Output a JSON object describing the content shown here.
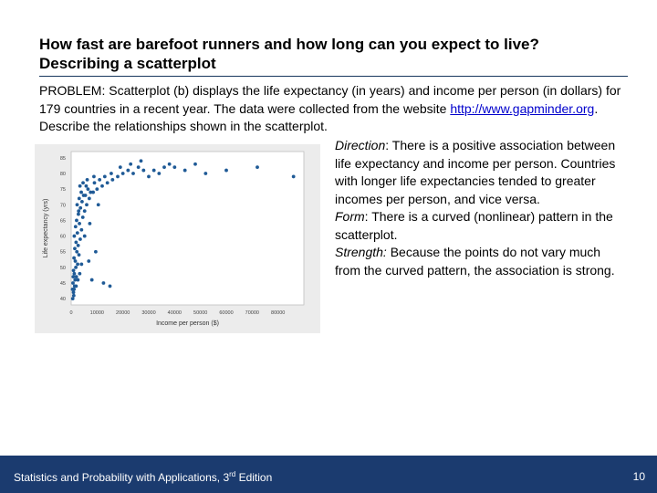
{
  "slide": {
    "title_line1": "How fast are barefoot runners and how long can you expect to live?",
    "title_line2": "Describing a scatterplot",
    "problem_label": "PROBLEM:",
    "problem_text_a": " Scatterplot (b) displays the life expectancy (in years) and income per person (in dollars) for 179 countries in a recent year. The data were collected from the website ",
    "problem_link": "http://www.gapminder.org",
    "problem_text_b": ". Describe the relationships shown in the scatterplot.",
    "direction_label": "Direction",
    "direction_text": ": There is a positive association between life expectancy and income per person.  Countries with longer life expectancies tended to greater incomes per person, and vice versa.",
    "form_label": "Form",
    "form_text": ": There is a curved (nonlinear) pattern in the scatterplot.",
    "strength_label": "Strength:",
    "strength_text": " Because the points do not vary much from the curved pattern, the association is strong."
  },
  "footer": {
    "book_pre": "Statistics and Probability with Applications, 3",
    "book_sup": "rd",
    "book_post": " Edition",
    "page_number": "10",
    "bar_color": "#1b3b6f"
  },
  "chart_data": {
    "type": "scatter",
    "xlabel": "Income per person ($)",
    "ylabel": "Life expectancy (yrs)",
    "xlim": [
      0,
      90000
    ],
    "ylim": [
      38,
      87
    ],
    "xticks": [
      "0",
      "10000",
      "20000",
      "30000",
      "40000",
      "50000",
      "60000",
      "70000",
      "80000"
    ],
    "yticks": [
      "40",
      "45",
      "50",
      "55",
      "60",
      "65",
      "70",
      "75",
      "80",
      "85"
    ],
    "point_color": "#1f5a96",
    "points": [
      [
        900,
        42
      ],
      [
        1100,
        43
      ],
      [
        1300,
        44
      ],
      [
        700,
        45
      ],
      [
        1500,
        46
      ],
      [
        2000,
        47
      ],
      [
        1200,
        48
      ],
      [
        900,
        49
      ],
      [
        1800,
        50
      ],
      [
        2500,
        51
      ],
      [
        1600,
        52
      ],
      [
        1100,
        53
      ],
      [
        3000,
        54
      ],
      [
        2200,
        55
      ],
      [
        1400,
        56
      ],
      [
        2700,
        57
      ],
      [
        1900,
        58
      ],
      [
        3500,
        59
      ],
      [
        1200,
        60
      ],
      [
        2400,
        61
      ],
      [
        4000,
        62
      ],
      [
        1700,
        63
      ],
      [
        3200,
        64
      ],
      [
        2100,
        65
      ],
      [
        4500,
        66
      ],
      [
        2800,
        67
      ],
      [
        5200,
        68
      ],
      [
        3600,
        69
      ],
      [
        2300,
        70
      ],
      [
        6000,
        70
      ],
      [
        4200,
        71
      ],
      [
        3100,
        72
      ],
      [
        7000,
        72
      ],
      [
        5500,
        73
      ],
      [
        4800,
        73
      ],
      [
        8500,
        74
      ],
      [
        3900,
        74
      ],
      [
        6500,
        75
      ],
      [
        10000,
        75
      ],
      [
        5800,
        76
      ],
      [
        12000,
        76
      ],
      [
        7500,
        74
      ],
      [
        9000,
        77
      ],
      [
        14000,
        77
      ],
      [
        11000,
        78
      ],
      [
        16000,
        78
      ],
      [
        13000,
        79
      ],
      [
        18000,
        79
      ],
      [
        20000,
        80
      ],
      [
        24000,
        80
      ],
      [
        28000,
        81
      ],
      [
        32000,
        81
      ],
      [
        36000,
        82
      ],
      [
        40000,
        82
      ],
      [
        44000,
        81
      ],
      [
        34000,
        80
      ],
      [
        38000,
        83
      ],
      [
        30000,
        79
      ],
      [
        26000,
        82
      ],
      [
        22000,
        81
      ],
      [
        48000,
        83
      ],
      [
        52000,
        80
      ],
      [
        60000,
        81
      ],
      [
        72000,
        82
      ],
      [
        86000,
        79
      ],
      [
        600,
        40
      ],
      [
        1000,
        41
      ],
      [
        1900,
        44
      ],
      [
        2600,
        46
      ],
      [
        3300,
        48
      ],
      [
        8000,
        46
      ],
      [
        12500,
        45
      ],
      [
        15000,
        44
      ],
      [
        4000,
        51
      ],
      [
        6800,
        52
      ],
      [
        9500,
        55
      ],
      [
        5200,
        60
      ],
      [
        7200,
        64
      ],
      [
        2900,
        68
      ],
      [
        10500,
        70
      ],
      [
        3400,
        76
      ],
      [
        4600,
        77
      ],
      [
        6200,
        78
      ],
      [
        8800,
        79
      ],
      [
        15500,
        80
      ],
      [
        19000,
        82
      ],
      [
        23000,
        83
      ],
      [
        27000,
        84
      ],
      [
        500,
        43
      ],
      [
        800,
        47
      ]
    ]
  }
}
